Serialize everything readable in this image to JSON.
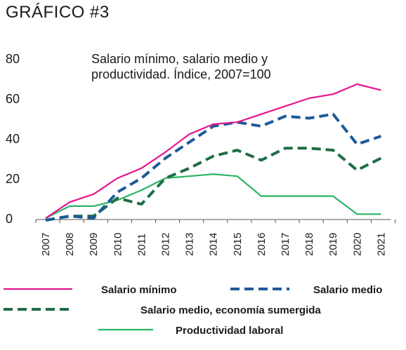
{
  "heading": "GRÁFICO #3",
  "chart_data": {
    "type": "line",
    "title_lines": [
      "Salario mínimo, salario medio y",
      "productividad. Índice, 2007=100"
    ],
    "xlabel": "",
    "ylabel": "",
    "x": [
      "2007",
      "2008",
      "2009",
      "2010",
      "2011",
      "2012",
      "2013",
      "2014",
      "2015",
      "2016",
      "2017",
      "2018",
      "2019",
      "2020",
      "2021"
    ],
    "ylim": [
      0,
      80
    ],
    "yticks": [
      0,
      20,
      40,
      60,
      80
    ],
    "grid": false,
    "legend_position": "bottom",
    "series": [
      {
        "name": "Salario mínimo",
        "color": "#e6168d",
        "dash": "solid",
        "values": [
          0,
          8,
          12,
          20,
          25,
          33,
          42,
          47,
          48,
          52,
          56,
          60,
          62,
          67,
          64
        ]
      },
      {
        "name": "Salario medio",
        "color": "#1d5a99",
        "dash": "dashed",
        "values": [
          -1,
          1,
          0,
          13,
          20,
          30,
          38,
          46,
          48,
          46,
          51,
          50,
          52,
          37,
          41
        ]
      },
      {
        "name": "Salario medio, economía sumergida",
        "color": "#1f6e46",
        "dash": "dashed",
        "values": [
          -1,
          1,
          1,
          10,
          7,
          20,
          25,
          31,
          34,
          29,
          35,
          35,
          34,
          24,
          30
        ]
      },
      {
        "name": "Productividad laboral",
        "color": "#2bb463",
        "dash": "solid",
        "values": [
          0,
          6,
          6,
          9,
          14,
          20,
          21,
          22,
          21,
          11,
          11,
          11,
          11,
          2,
          2
        ]
      }
    ]
  }
}
